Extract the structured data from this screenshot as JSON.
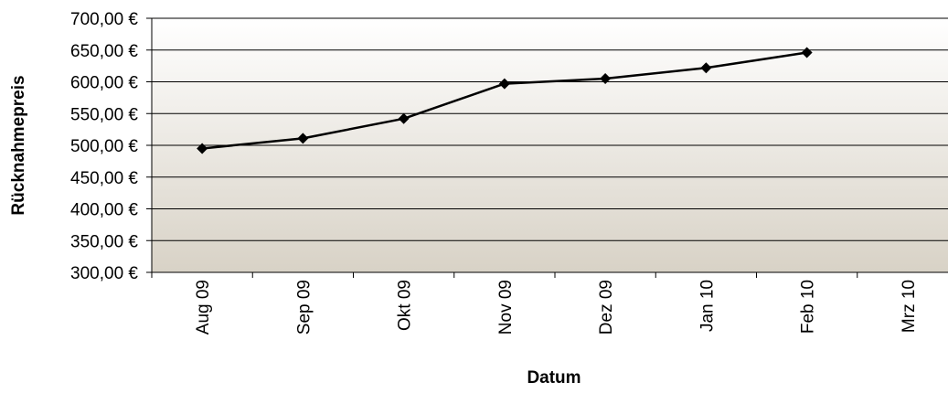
{
  "chart_data": {
    "type": "line",
    "title": "",
    "xlabel": "Datum",
    "ylabel": "Rücknahmepreis",
    "categories": [
      "Aug 09",
      "Sep 09",
      "Okt 09",
      "Nov 09",
      "Dez 09",
      "Jan 10",
      "Feb 10",
      "Mrz 10"
    ],
    "series": [
      {
        "values": [
          495,
          511,
          542,
          597,
          605,
          622,
          646,
          null
        ]
      }
    ],
    "ylim": [
      300,
      700
    ],
    "ytick_step": 50,
    "yticks": [
      "300,00 €",
      "350,00 €",
      "400,00 €",
      "450,00 €",
      "500,00 €",
      "550,00 €",
      "600,00 €",
      "650,00 €",
      "700,00 €"
    ],
    "grid": true,
    "legend": "none",
    "colors": {
      "line": "#000000",
      "marker": "#000000",
      "plot_top": "#ffffff",
      "plot_bottom": "#d8d2c6",
      "gridline": "#000000"
    }
  }
}
